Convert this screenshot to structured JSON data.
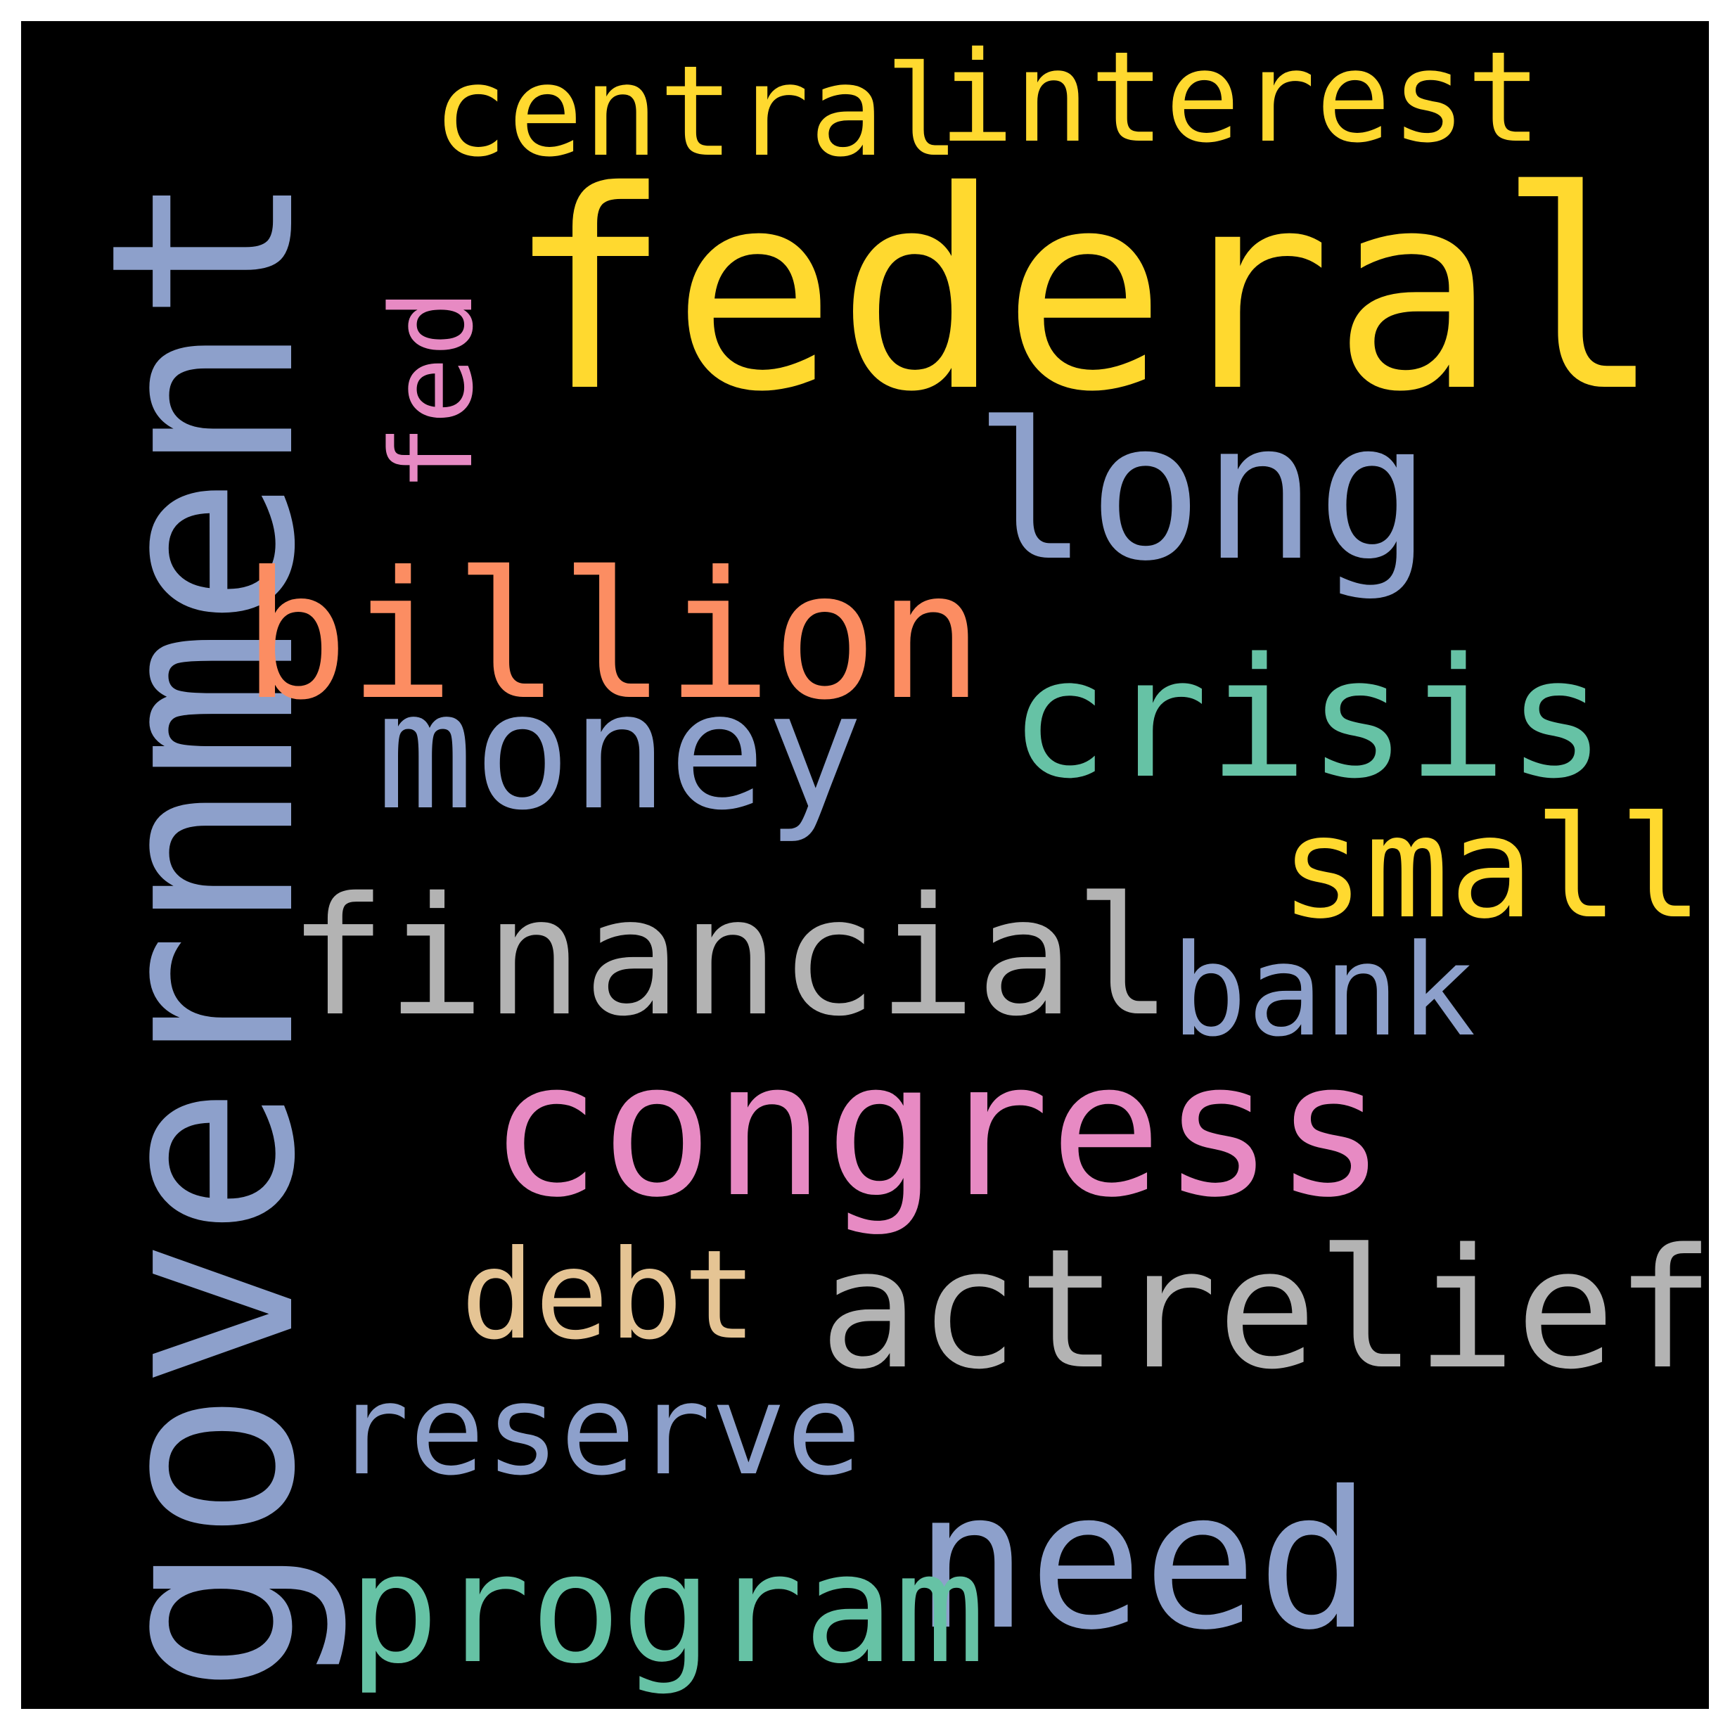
{
  "colors": {
    "background": "#000000",
    "frame": "#ffffff"
  },
  "words": [
    {
      "id": "government",
      "text": "government",
      "color": "#8DA0CB",
      "orientation": "vertical"
    },
    {
      "id": "federal",
      "text": "federal",
      "color": "#FFD92F",
      "orientation": "horizontal"
    },
    {
      "id": "central",
      "text": "central",
      "color": "#FFD92F",
      "orientation": "horizontal"
    },
    {
      "id": "interest",
      "text": "interest",
      "color": "#FFD92F",
      "orientation": "horizontal"
    },
    {
      "id": "fed",
      "text": "fed",
      "color": "#E78AC3",
      "orientation": "vertical"
    },
    {
      "id": "long",
      "text": "long",
      "color": "#8DA0CB",
      "orientation": "horizontal"
    },
    {
      "id": "billion",
      "text": "billion",
      "color": "#FC8D62",
      "orientation": "horizontal"
    },
    {
      "id": "money",
      "text": "money",
      "color": "#8DA0CB",
      "orientation": "horizontal"
    },
    {
      "id": "crisis",
      "text": "crisis",
      "color": "#66C2A5",
      "orientation": "horizontal"
    },
    {
      "id": "small",
      "text": "small",
      "color": "#FFD92F",
      "orientation": "horizontal"
    },
    {
      "id": "financial",
      "text": "financial",
      "color": "#B3B3B3",
      "orientation": "horizontal"
    },
    {
      "id": "bank",
      "text": "bank",
      "color": "#8DA0CB",
      "orientation": "horizontal"
    },
    {
      "id": "congress",
      "text": "congress",
      "color": "#E78AC3",
      "orientation": "horizontal"
    },
    {
      "id": "debt",
      "text": "debt",
      "color": "#E5C494",
      "orientation": "horizontal"
    },
    {
      "id": "actrelief",
      "text": "actrelief",
      "color": "#B3B3B3",
      "orientation": "horizontal"
    },
    {
      "id": "reserve",
      "text": "reserve",
      "color": "#8DA0CB",
      "orientation": "horizontal"
    },
    {
      "id": "need",
      "text": "need",
      "color": "#8DA0CB",
      "orientation": "horizontal"
    },
    {
      "id": "program",
      "text": "program",
      "color": "#66C2A5",
      "orientation": "horizontal"
    }
  ]
}
